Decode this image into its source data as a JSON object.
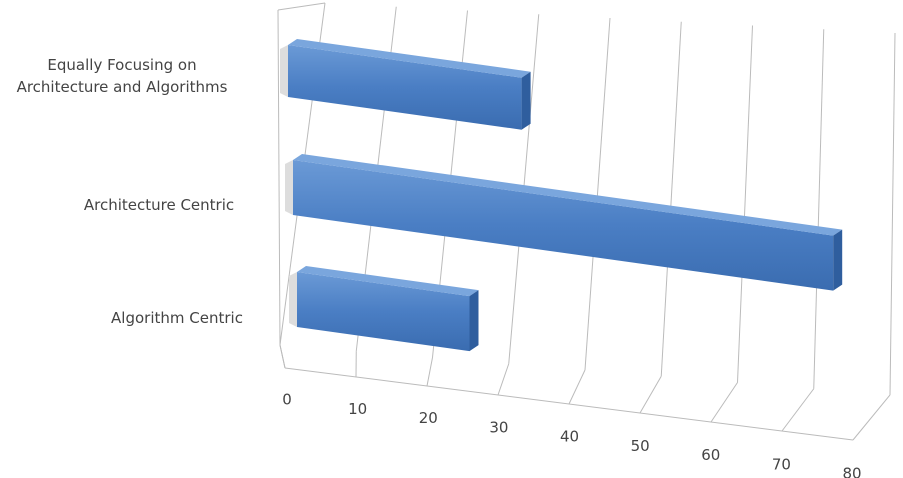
{
  "chart_data": {
    "type": "bar3d_horizontal",
    "categories": [
      "Algorithm Centric",
      "Architecture Centric",
      "Equally Focusing on\nArchitecture and Algorithms"
    ],
    "values": [
      25,
      74,
      32
    ],
    "color": "#4a7ec4",
    "xlim": [
      0,
      80
    ],
    "xticks": [
      0,
      10,
      20,
      30,
      40,
      50,
      60,
      70,
      80
    ],
    "grid": true
  }
}
